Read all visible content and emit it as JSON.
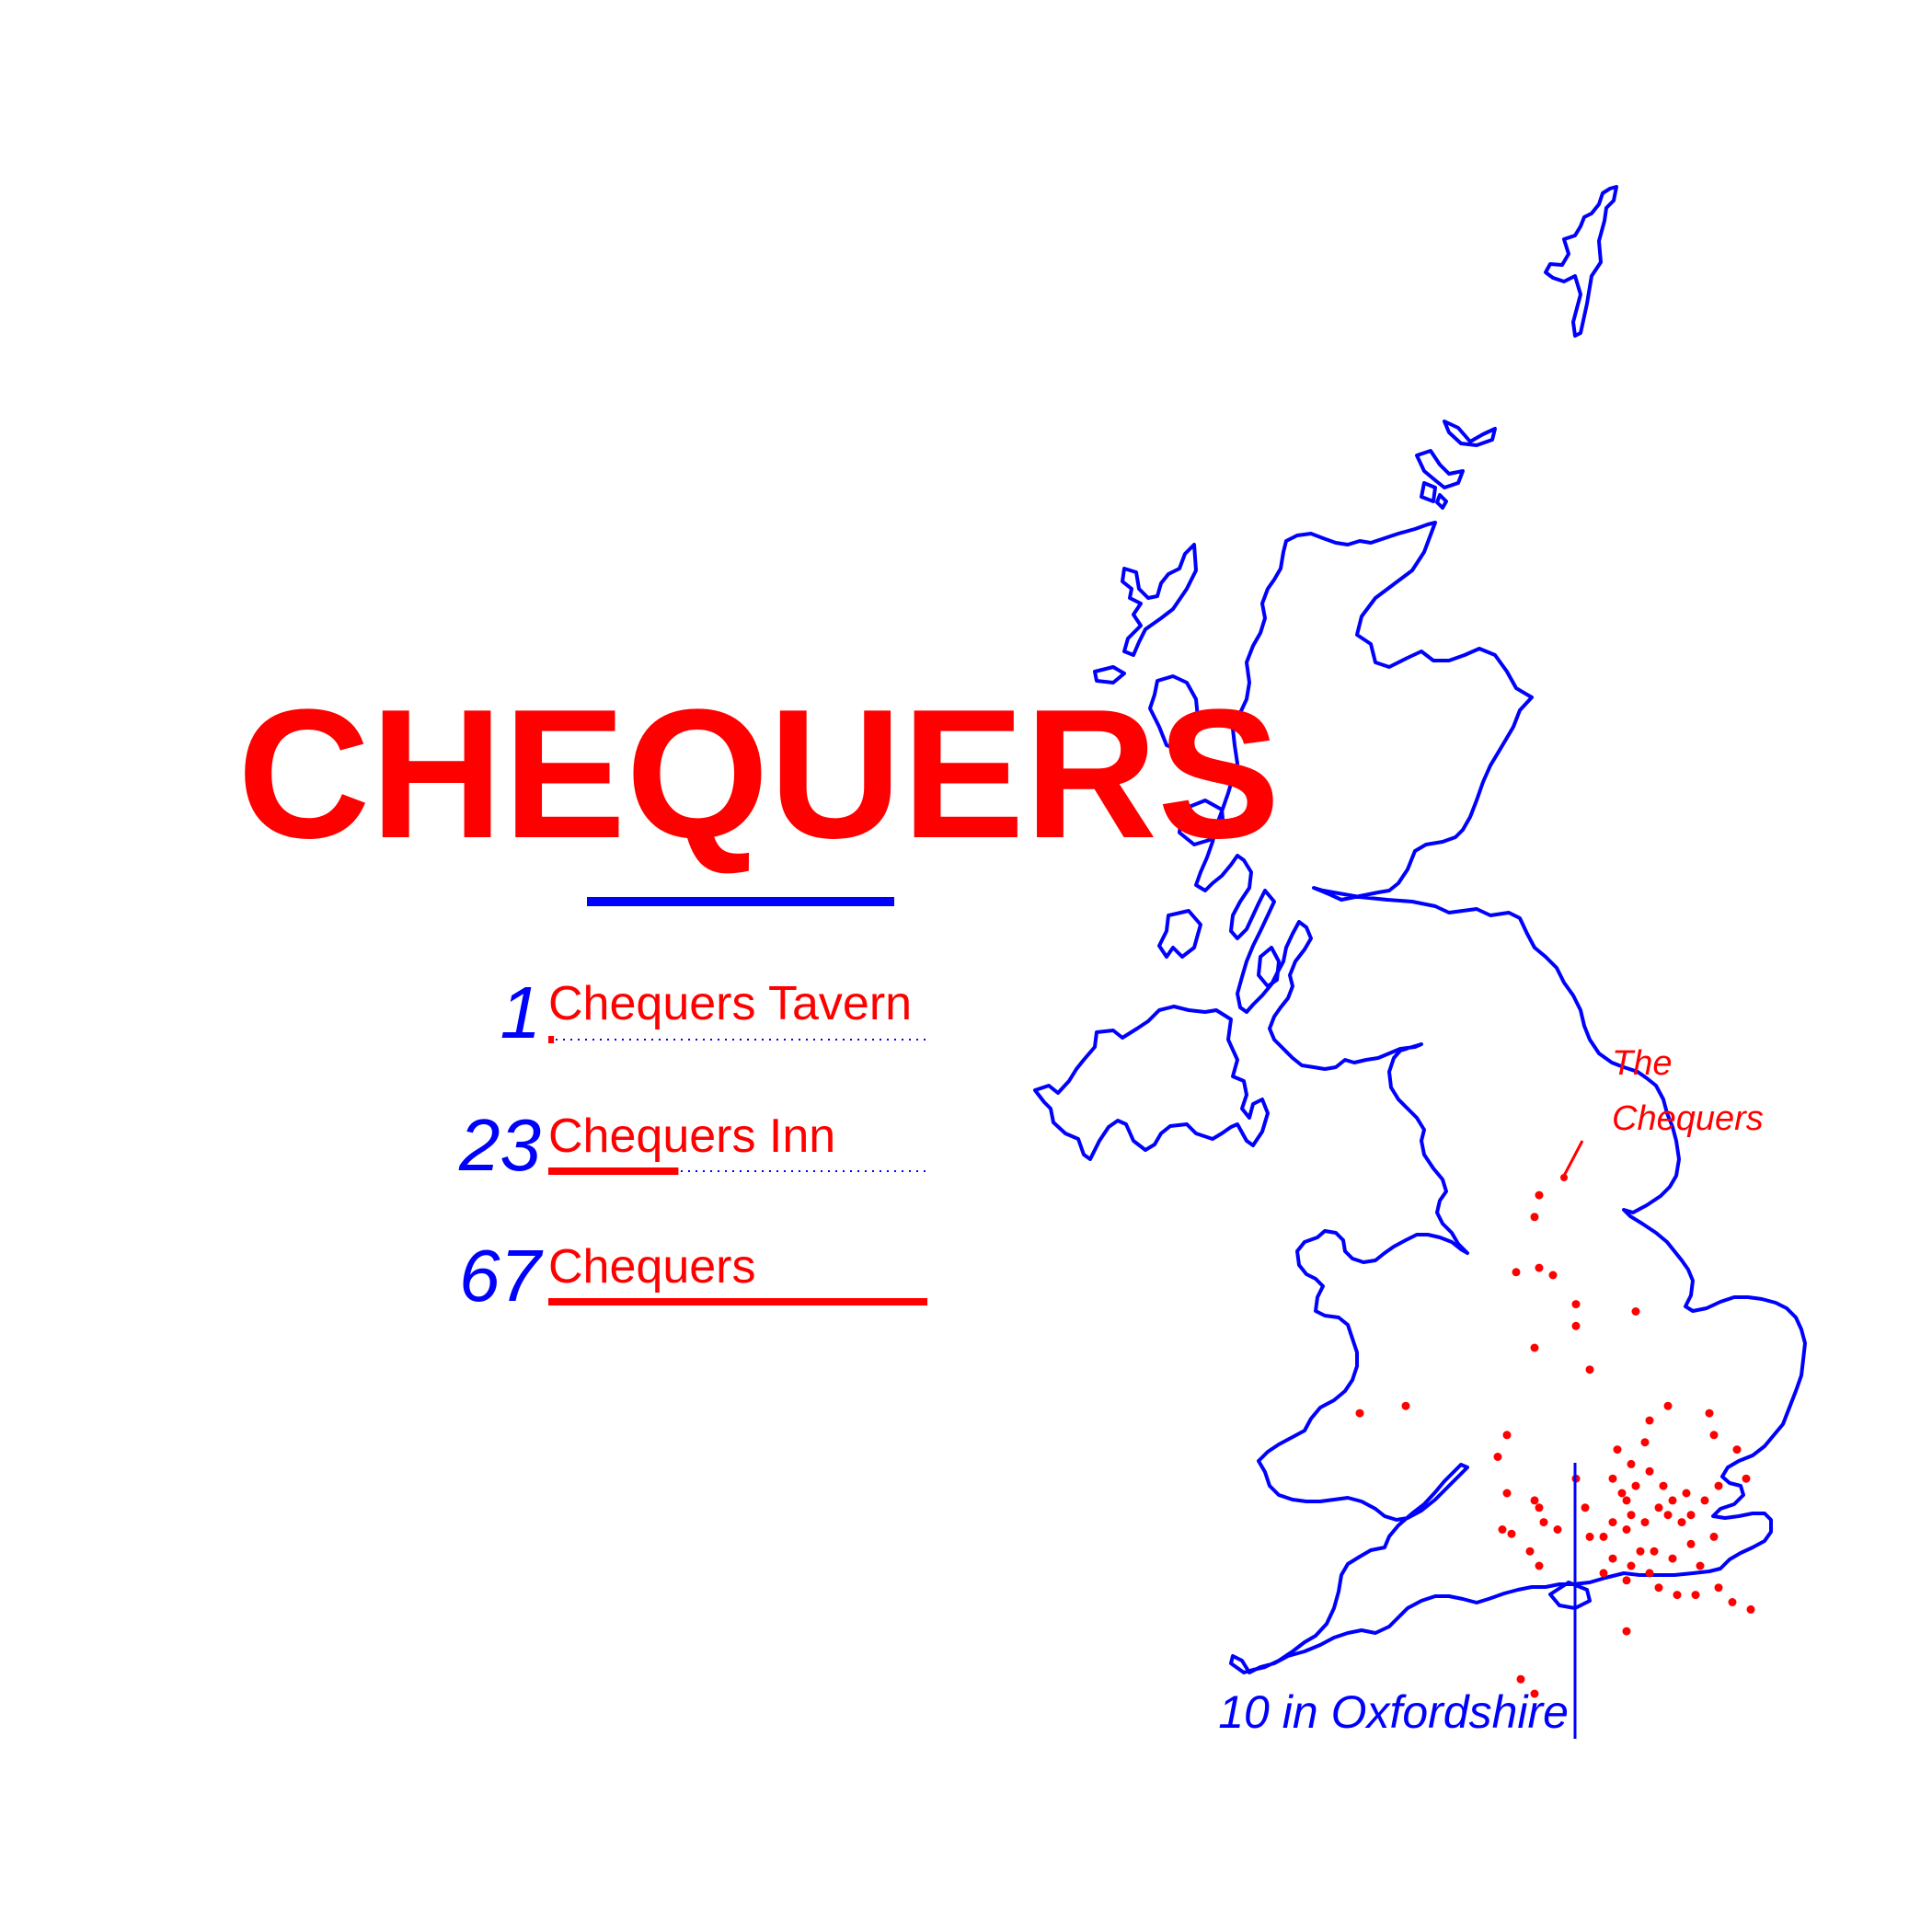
{
  "title": "CHEQUERS",
  "colors": {
    "primary": "#ff0000",
    "secondary": "#0000ff",
    "background": "#ffffff"
  },
  "ranking": [
    {
      "rank": "1",
      "name": "Chequers Tavern",
      "count": 1
    },
    {
      "rank": "23",
      "name": "Chequers Inn",
      "count": 23
    },
    {
      "rank": "67",
      "name": "Chequers",
      "count": 67
    }
  ],
  "annotations": {
    "north_callout_line1": "The",
    "north_callout_line2": "Chequers",
    "oxfordshire_callout": "10 in Oxfordshire"
  },
  "map": {
    "region": "Great Britain",
    "points": [
      [
        54.05,
        -1.0
      ],
      [
        53.9,
        -1.05
      ],
      [
        53.55,
        -1.0
      ],
      [
        53.52,
        -1.25
      ],
      [
        53.5,
        -0.85
      ],
      [
        53.3,
        -0.6
      ],
      [
        53.15,
        -0.6
      ],
      [
        53.0,
        -1.05
      ],
      [
        53.25,
        0.05
      ],
      [
        52.85,
        -0.45
      ],
      [
        52.55,
        -2.95
      ],
      [
        52.6,
        -2.45
      ],
      [
        52.4,
        -1.35
      ],
      [
        52.25,
        -1.45
      ],
      [
        52.0,
        -1.35
      ],
      [
        51.95,
        -1.05
      ],
      [
        51.9,
        -1.0
      ],
      [
        51.75,
        -1.4
      ],
      [
        51.72,
        -1.3
      ],
      [
        51.75,
        -0.8
      ],
      [
        51.8,
        -0.95
      ],
      [
        51.6,
        -1.1
      ],
      [
        51.5,
        -1.0
      ],
      [
        51.9,
        -0.5
      ],
      [
        52.1,
        -0.6
      ],
      [
        52.1,
        -0.2
      ],
      [
        52.0,
        -0.1
      ],
      [
        52.05,
        0.05
      ],
      [
        51.95,
        -0.05
      ],
      [
        51.85,
        0.0
      ],
      [
        51.8,
        -0.2
      ],
      [
        51.7,
        -0.45
      ],
      [
        51.7,
        -0.3
      ],
      [
        51.75,
        -0.05
      ],
      [
        51.8,
        0.15
      ],
      [
        51.9,
        0.3
      ],
      [
        51.85,
        0.4
      ],
      [
        51.8,
        0.55
      ],
      [
        51.95,
        0.45
      ],
      [
        52.05,
        0.35
      ],
      [
        52.15,
        0.2
      ],
      [
        52.2,
        0.0
      ],
      [
        52.3,
        -0.15
      ],
      [
        52.35,
        0.15
      ],
      [
        52.5,
        0.2
      ],
      [
        52.6,
        0.4
      ],
      [
        52.55,
        0.85
      ],
      [
        52.4,
        0.9
      ],
      [
        52.3,
        1.15
      ],
      [
        52.1,
        1.25
      ],
      [
        51.55,
        -0.2
      ],
      [
        51.5,
        0.0
      ],
      [
        51.45,
        0.2
      ],
      [
        51.35,
        0.3
      ],
      [
        51.3,
        0.5
      ],
      [
        51.3,
        0.7
      ],
      [
        51.35,
        0.95
      ],
      [
        51.25,
        1.1
      ],
      [
        51.2,
        1.3
      ],
      [
        51.4,
        -0.05
      ],
      [
        51.45,
        -0.3
      ],
      [
        51.6,
        0.25
      ],
      [
        51.6,
        0.1
      ],
      [
        51.55,
        0.45
      ],
      [
        51.65,
        0.65
      ],
      [
        51.7,
        0.9
      ],
      [
        51.5,
        0.75
      ],
      [
        51.95,
        0.8
      ],
      [
        52.0,
        0.6
      ],
      [
        52.05,
        0.95
      ],
      [
        51.85,
        0.65
      ],
      [
        51.05,
        -0.05
      ],
      [
        50.72,
        -1.2
      ],
      [
        50.62,
        -1.05
      ]
    ]
  }
}
